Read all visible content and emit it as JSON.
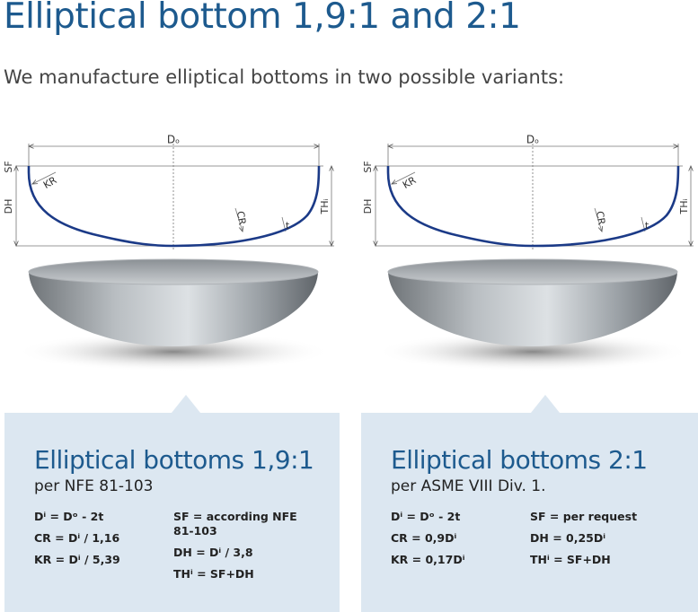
{
  "header": {
    "title": "Elliptical bottom 1,9:1 and 2:1",
    "intro": "We manufacture elliptical bottoms in two possible variants:"
  },
  "variants": [
    {
      "diagram": {
        "labels": {
          "do": "Dₒ",
          "sf": "SF",
          "dh": "DH",
          "kr": "KR",
          "cr": "CR",
          "t": "t",
          "th": "THᵢ"
        }
      },
      "panel": {
        "title": "Elliptical bottoms 1,9:1",
        "subtitle": "per NFE 81-103",
        "formulas_left": [
          "Dⁱ = Dᵒ - 2t",
          "CR = Dⁱ / 1,16",
          "KR = Dⁱ / 5,39"
        ],
        "formulas_right": [
          "SF = according NFE 81-103",
          "DH = Dⁱ / 3,8",
          "THⁱ = SF+DH"
        ]
      }
    },
    {
      "diagram": {
        "labels": {
          "do": "Dₒ",
          "sf": "SF",
          "dh": "DH",
          "kr": "KR",
          "cr": "CR",
          "t": "t",
          "th": "THᵢ"
        }
      },
      "panel": {
        "title": "Elliptical bottoms 2:1",
        "subtitle": "per ASME VIII Div. 1.",
        "formulas_left": [
          "Dⁱ = Dᵒ - 2t",
          "CR = 0,9Dⁱ",
          "KR = 0,17Dⁱ"
        ],
        "formulas_right": [
          "SF = per request",
          "DH = 0,25Dⁱ",
          "THⁱ = SF+DH"
        ]
      }
    }
  ]
}
